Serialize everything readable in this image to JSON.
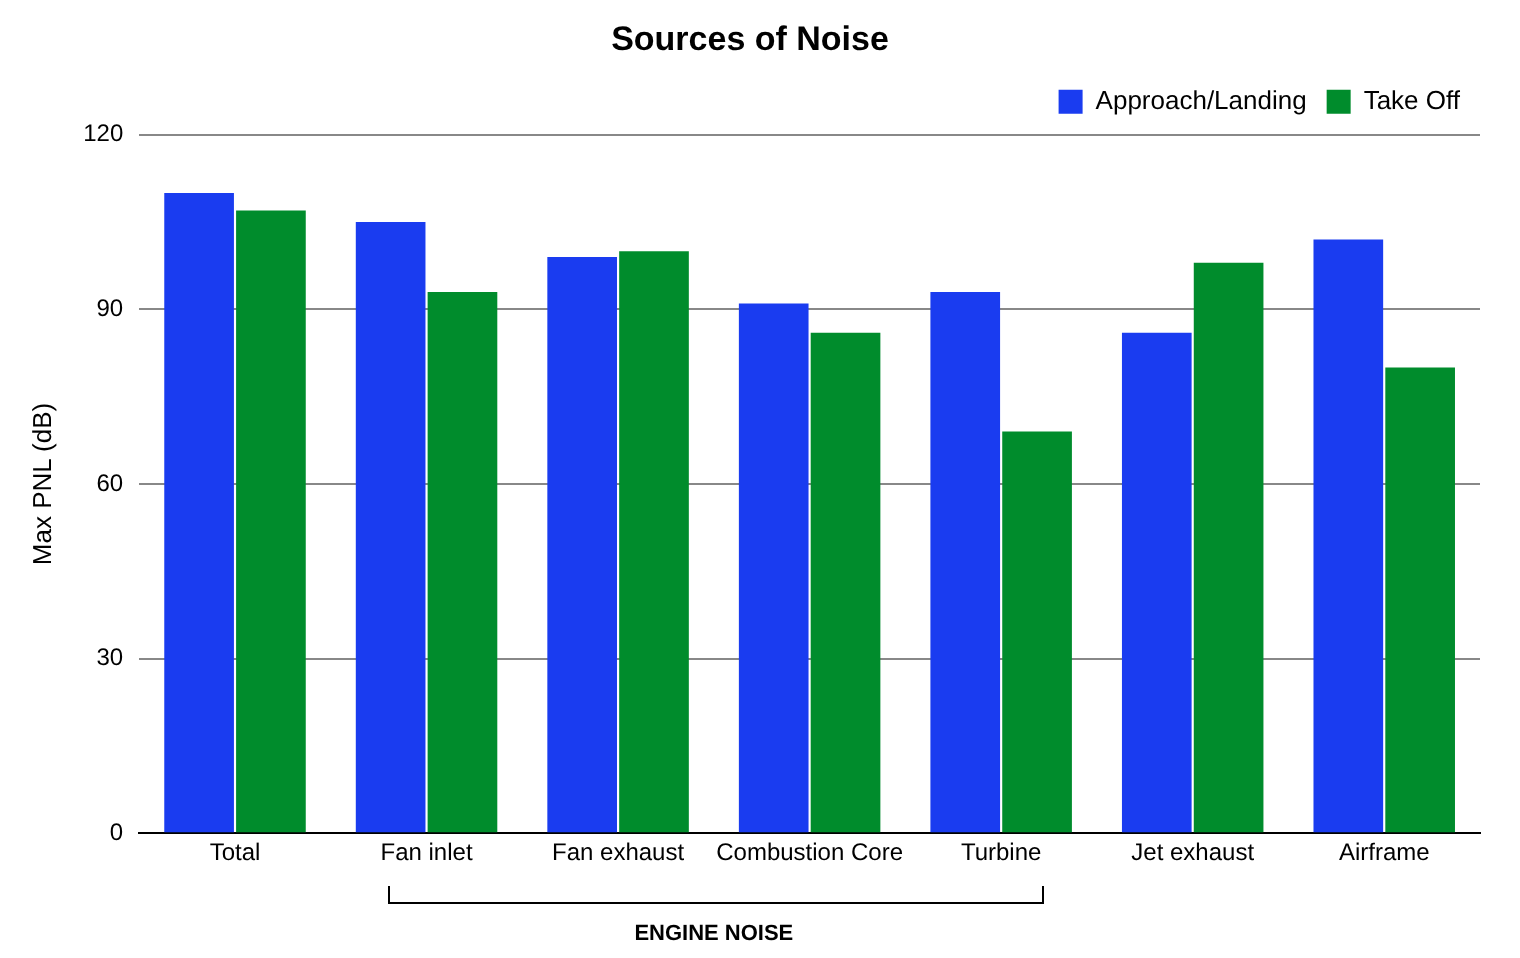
{
  "chart_data": {
    "type": "bar",
    "title": "Sources of Noise",
    "ylabel": "Max PNL (dB)",
    "categories": [
      "Total",
      "Fan inlet",
      "Fan exhaust",
      "Combustion Core",
      "Turbine",
      "Jet exhaust",
      "Airframe"
    ],
    "series": [
      {
        "name": "Approach/Landing",
        "color": "#1a3cf0",
        "values": [
          110,
          105,
          99,
          91,
          93,
          86,
          102
        ]
      },
      {
        "name": "Take Off",
        "color": "#008c2c",
        "values": [
          107,
          93,
          100,
          86,
          69,
          98,
          80
        ]
      }
    ],
    "ylim": [
      0,
      120
    ],
    "yticks": [
      0,
      30,
      60,
      90,
      120
    ],
    "grid": "y",
    "legend": "top right",
    "annotations": [
      "ENGINE NOISE"
    ]
  }
}
